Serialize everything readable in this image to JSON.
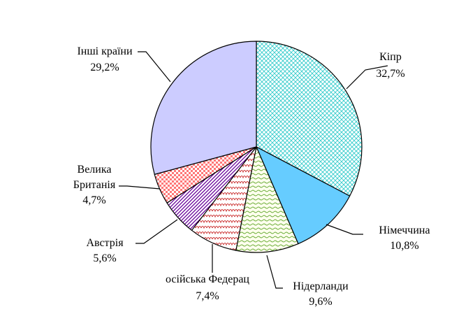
{
  "chart_data": {
    "type": "pie",
    "title": "",
    "categories": [
      "Кіпр",
      "Німеччина",
      "Нідерланди",
      "Російська Федерація",
      "Австрія",
      "Велика Британія",
      "Інші країни"
    ],
    "values": [
      32.7,
      10.8,
      9.6,
      7.4,
      5.6,
      4.7,
      29.2
    ],
    "value_labels": [
      "32,7%",
      "10,8%",
      "9,6%",
      "7,4%",
      "5,6%",
      "4,7%",
      "29,2%"
    ],
    "label_lines": [
      [
        "Кіпр"
      ],
      [
        "Німеччина"
      ],
      [
        "Нідерланди"
      ],
      [
        "осійська Федерац"
      ],
      [
        "Австрія"
      ],
      [
        "Велика",
        "Британія"
      ],
      [
        "Інші країни"
      ]
    ],
    "colors": [
      "#33cccc",
      "#66ccff",
      "#ccff99",
      "#cc3333",
      "#660099",
      "#ff9999",
      "#ccccff"
    ],
    "patterns": [
      "dots",
      "solid",
      "wave",
      "scallop",
      "diagonal",
      "check",
      "solid"
    ],
    "start_angle_deg": 0,
    "direction": "clockwise",
    "legend": "none",
    "grid": false
  }
}
